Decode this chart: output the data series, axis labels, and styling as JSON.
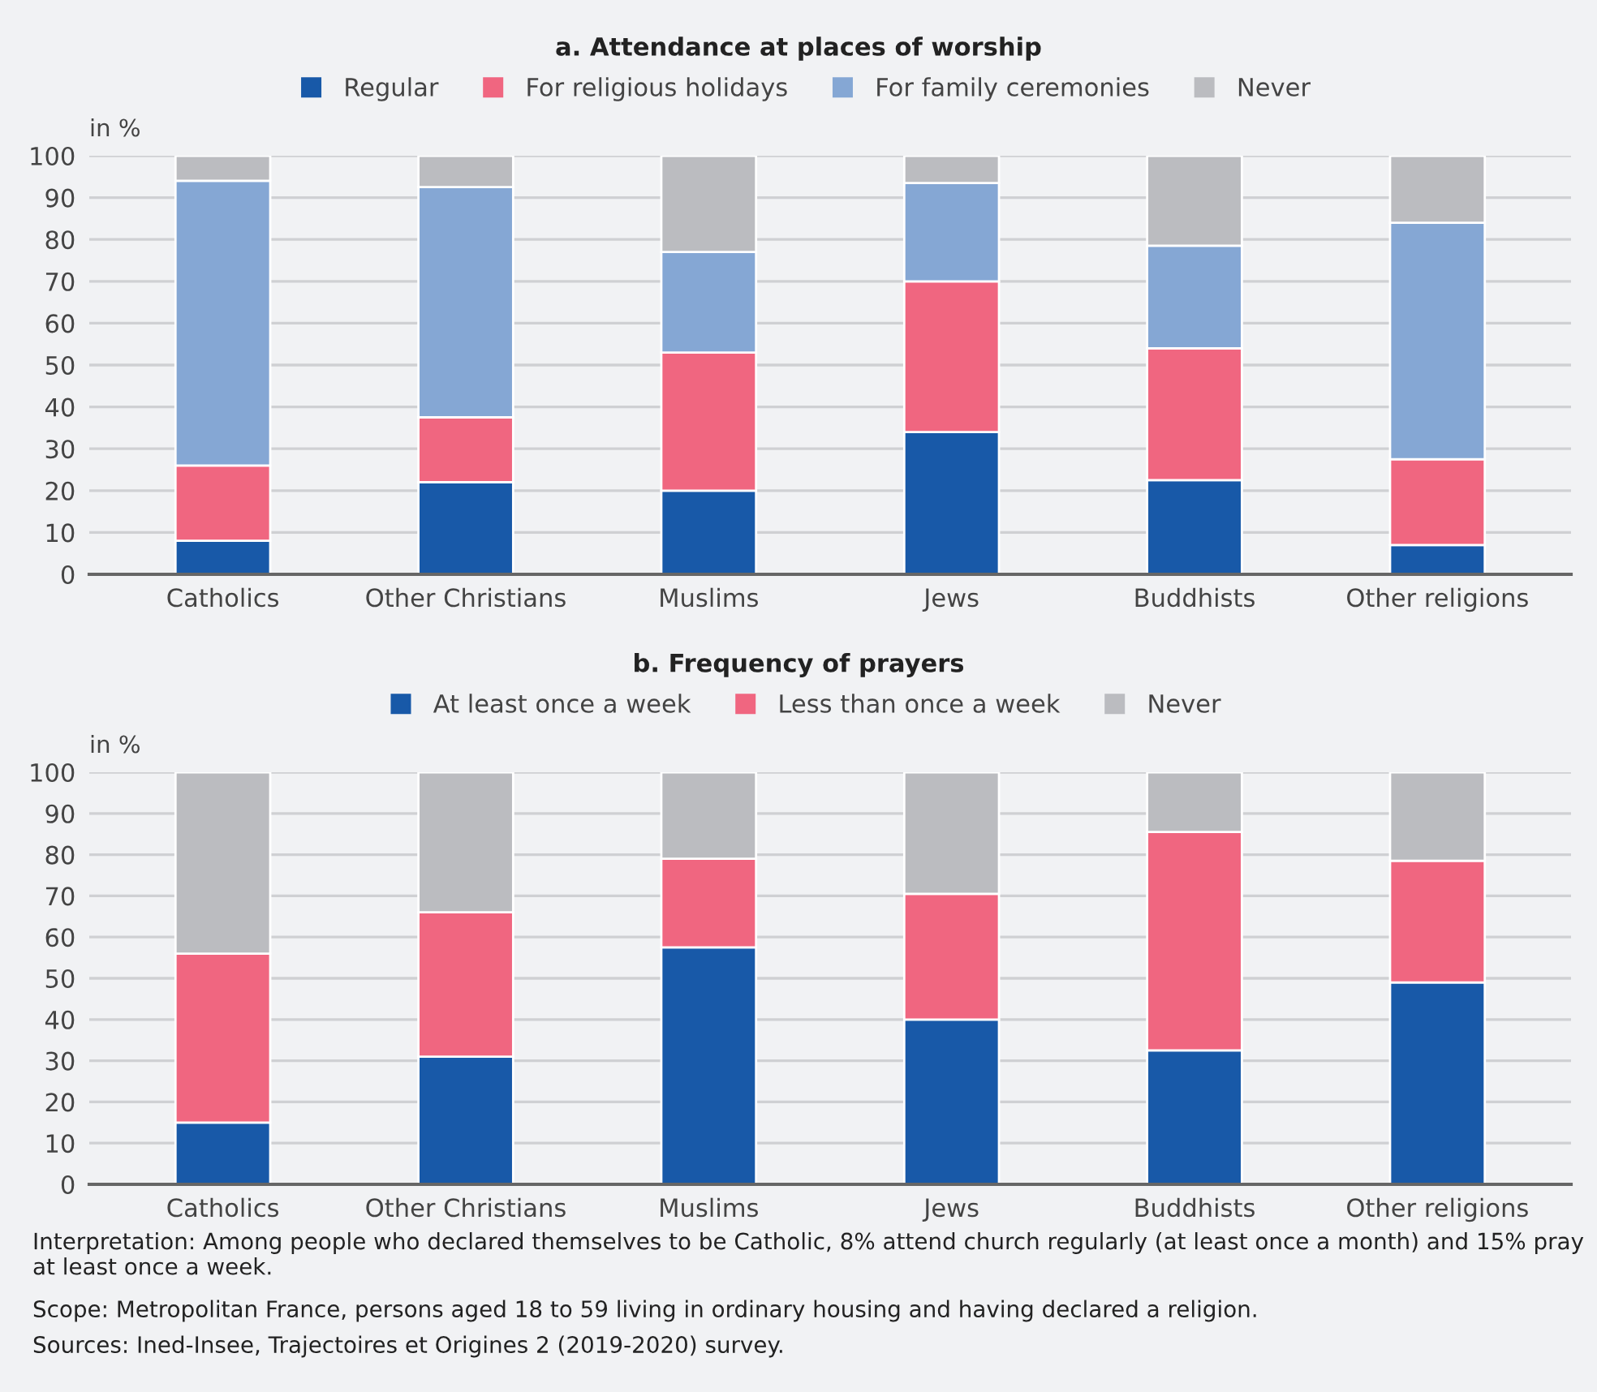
{
  "chart_data": [
    {
      "type": "bar",
      "stacked": true,
      "title": "a. Attendance at places of worship",
      "ylabel": "in %",
      "categories": [
        "Catholics",
        "Other Christians",
        "Muslims",
        "Jews",
        "Buddhists",
        "Other religions"
      ],
      "series": [
        {
          "name": "Regular",
          "color": "#1859a8",
          "values": [
            8,
            22,
            20,
            34,
            22.5,
            7
          ]
        },
        {
          "name": "For religious holidays",
          "color": "#f06680",
          "values": [
            18,
            15.5,
            33,
            36,
            31.5,
            20.5
          ]
        },
        {
          "name": "For family ceremonies",
          "color": "#85a7d4",
          "values": [
            68,
            55,
            24,
            23.5,
            24.5,
            56.5
          ]
        },
        {
          "name": "Never",
          "color": "#bbbcc0",
          "values": [
            6,
            7.5,
            23,
            6.5,
            21.5,
            16
          ]
        }
      ],
      "ylim": [
        0,
        100
      ],
      "yticks": [
        0,
        10,
        20,
        30,
        40,
        50,
        60,
        70,
        80,
        90,
        100
      ],
      "grid": "y",
      "legend": "top"
    },
    {
      "type": "bar",
      "stacked": true,
      "title": "b. Frequency of prayers",
      "ylabel": "in %",
      "categories": [
        "Catholics",
        "Other Christians",
        "Muslims",
        "Jews",
        "Buddhists",
        "Other religions"
      ],
      "series": [
        {
          "name": "At least once a week",
          "color": "#1859a8",
          "values": [
            15,
            31,
            57.5,
            40,
            32.5,
            49
          ]
        },
        {
          "name": "Less than once a week",
          "color": "#f06680",
          "values": [
            41,
            35,
            21.5,
            30.5,
            53,
            29.5
          ]
        },
        {
          "name": "Never",
          "color": "#bbbcc0",
          "values": [
            44,
            34,
            21,
            29.5,
            14.5,
            21.5
          ]
        }
      ],
      "ylim": [
        0,
        100
      ],
      "yticks": [
        0,
        10,
        20,
        30,
        40,
        50,
        60,
        70,
        80,
        90,
        100
      ],
      "grid": "y",
      "legend": "top",
      "annotations": [
        "Interpretation: Among people who declared themselves to be Catholic, 8% attend church regularly (at least once a month) and 15% pray at least once a week.",
        "Scope: Metropolitan France, persons aged 18 to 59 living in ordinary housing and having declared a religion.",
        "Sources: Ined-Insee, Trajectoires et Origines 2 (2019-2020) survey."
      ]
    }
  ]
}
